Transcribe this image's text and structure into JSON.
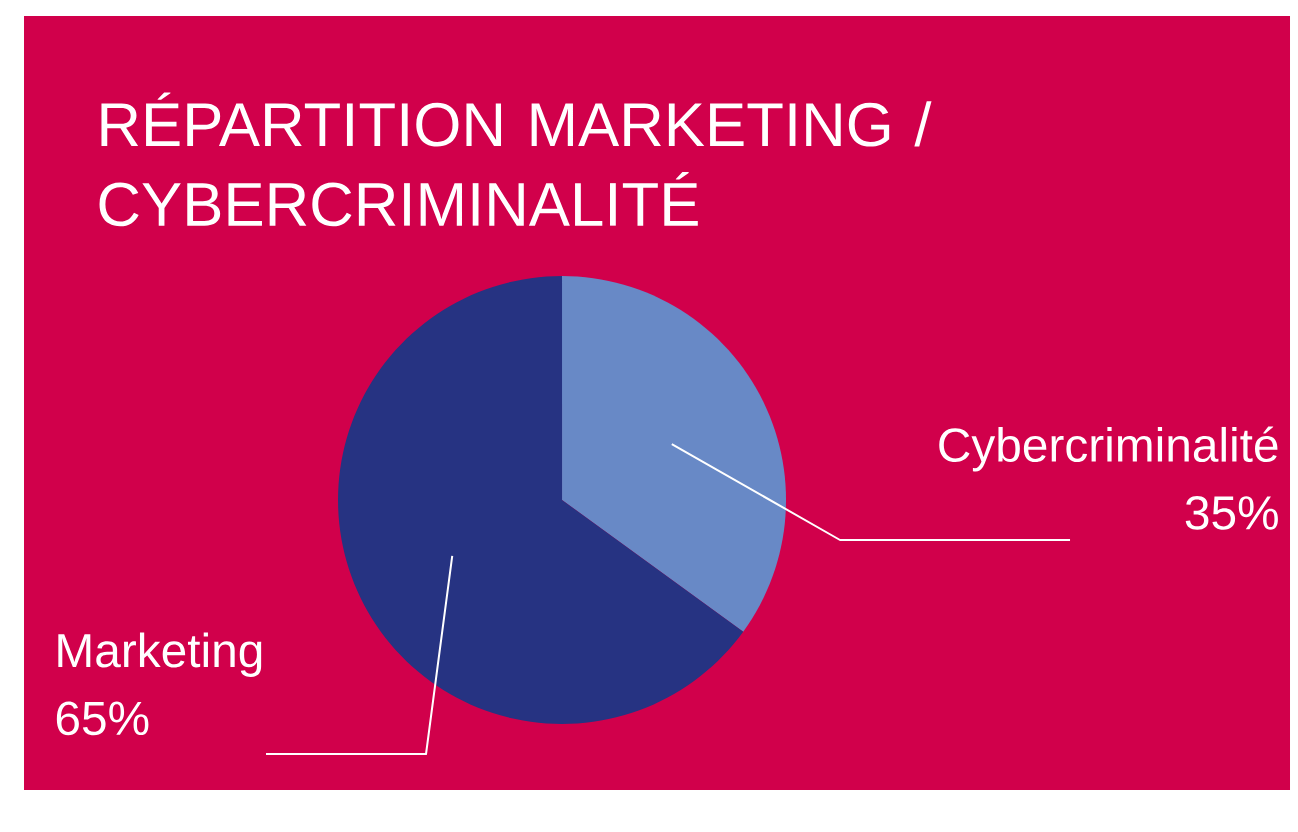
{
  "chart_data": {
    "type": "pie",
    "title": "RÉPARTITION MARKETING / CYBERCRIMINALITÉ",
    "categories": [
      "Cybercriminalité",
      "Marketing"
    ],
    "values": [
      35,
      65
    ],
    "colors": [
      "#6889c6",
      "#263382"
    ],
    "value_labels": [
      "35%",
      "65%"
    ]
  }
}
